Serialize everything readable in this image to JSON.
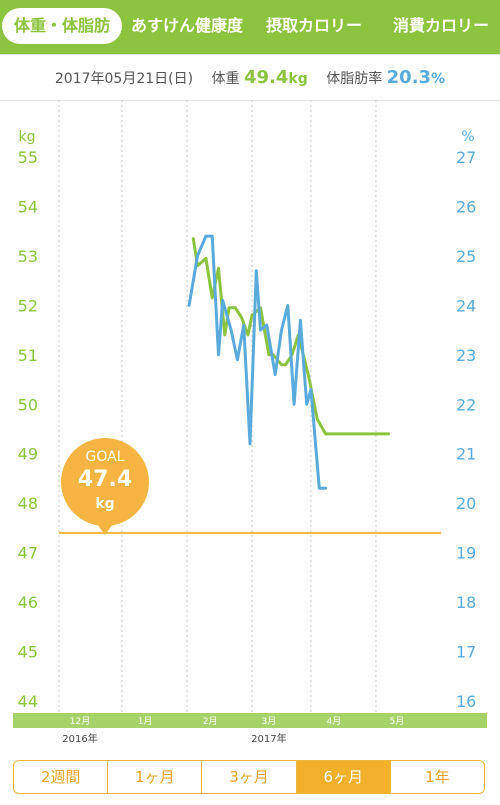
{
  "tabs": [
    {
      "label": "体重・体脂肪",
      "active": true
    },
    {
      "label": "あすけん健康度",
      "active": false
    },
    {
      "label": "摂取カロリー",
      "active": false
    },
    {
      "label": "消費カロリー",
      "active": false
    }
  ],
  "summary": {
    "date": "2017年05月21日(日)",
    "weight_label": "体重",
    "weight_value": "49.4",
    "weight_unit": "kg",
    "fat_label": "体脂肪率",
    "fat_value": "20.3",
    "fat_unit": "%"
  },
  "goal": {
    "label": "GOAL",
    "value": "47.4",
    "unit": "kg"
  },
  "periods": [
    {
      "label": "2週間",
      "active": false
    },
    {
      "label": "1ヶ月",
      "active": false
    },
    {
      "label": "3ヶ月",
      "active": false
    },
    {
      "label": "6ヶ月",
      "active": true
    },
    {
      "label": "1年",
      "active": false
    }
  ],
  "colors": {
    "weight": "#8cc43f",
    "fat": "#5aabdc",
    "goal": "#f6b542",
    "month_band": "#a5d36a"
  },
  "chart_data": {
    "type": "line",
    "x_unit": "days from 2016-11-21",
    "xlim": [
      0,
      182
    ],
    "y_left": {
      "label": "kg",
      "ticks": [
        44,
        45,
        46,
        47,
        48,
        49,
        50,
        51,
        52,
        53,
        54,
        55
      ],
      "range": [
        44,
        55
      ]
    },
    "y_right": {
      "label": "%",
      "ticks": [
        16,
        17,
        18,
        19,
        20,
        21,
        22,
        23,
        24,
        25,
        26,
        27
      ],
      "range": [
        16,
        27
      ]
    },
    "month_ticks": [
      {
        "label": "12月",
        "day": 10
      },
      {
        "label": "1月",
        "day": 41
      },
      {
        "label": "2月",
        "day": 72
      },
      {
        "label": "3月",
        "day": 100
      },
      {
        "label": "4月",
        "day": 131
      },
      {
        "label": "5月",
        "day": 161
      }
    ],
    "year_labels": [
      {
        "label": "2016年",
        "day": 10
      },
      {
        "label": "2017年",
        "day": 100
      }
    ],
    "gridlines_days": [
      0,
      30,
      61,
      92,
      120,
      151
    ],
    "goal_line": 47.4,
    "series": [
      {
        "axis": "left",
        "x": [
          64,
          66,
          70,
          73,
          76,
          79,
          81,
          84,
          87,
          90,
          92,
          96,
          100,
          102,
          106,
          108,
          111,
          114,
          119,
          123,
          127,
          131,
          136,
          141,
          145,
          148,
          152,
          157
        ],
        "values": [
          53.35,
          52.8,
          52.95,
          52.15,
          52.75,
          51.4,
          51.95,
          51.95,
          51.75,
          51.4,
          51.8,
          51.95,
          51.0,
          51.0,
          50.8,
          50.8,
          51.0,
          51.4,
          50.55,
          49.7,
          49.4,
          49.4,
          49.4,
          49.4,
          49.4,
          49.4,
          49.4,
          49.4
        ]
      },
      {
        "axis": "right",
        "x": [
          62,
          66,
          70,
          73,
          76,
          78,
          82,
          85,
          88,
          91,
          94,
          96,
          99,
          103,
          106,
          109,
          112,
          115,
          118,
          120,
          124,
          127
        ],
        "values": [
          24.0,
          25.0,
          25.4,
          25.4,
          23.0,
          24.1,
          23.5,
          22.9,
          23.6,
          21.2,
          24.7,
          23.5,
          23.6,
          22.6,
          23.5,
          24.0,
          22.0,
          23.7,
          22.0,
          22.3,
          20.3,
          20.3
        ]
      }
    ]
  }
}
